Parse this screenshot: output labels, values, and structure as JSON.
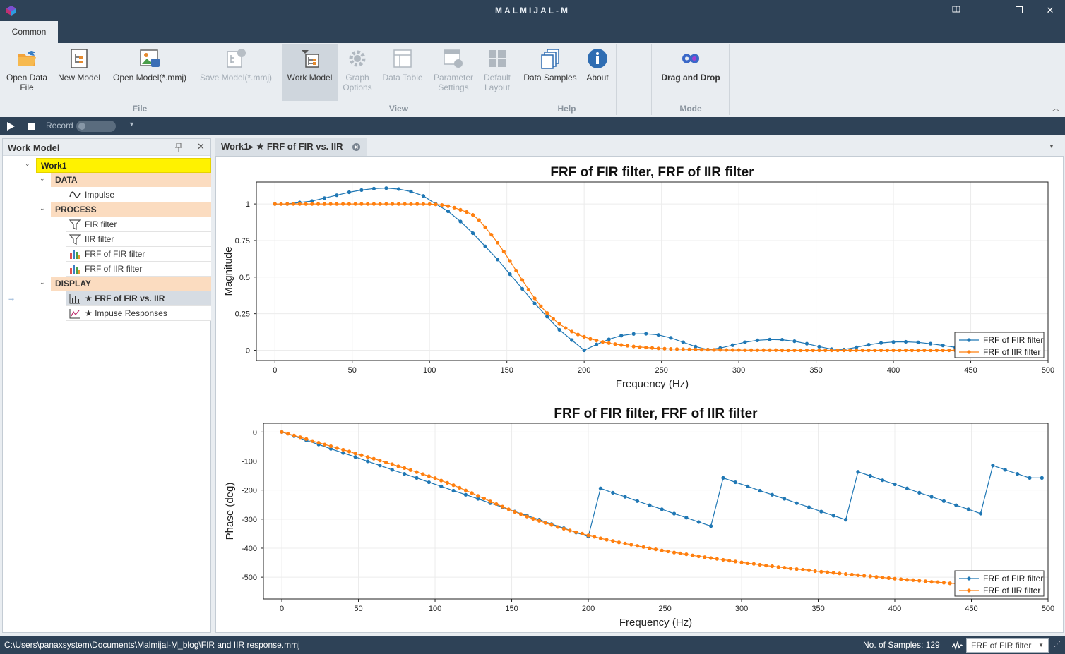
{
  "window": {
    "title": "MALMIJAL-M"
  },
  "tabs": {
    "common": "Common"
  },
  "ribbon": {
    "open_data_file_l1": "Open Data",
    "open_data_file_l2": "File",
    "new_model": "New Model",
    "open_model": "Open Model(*.mmj)",
    "save_model": "Save Model(*.mmj)",
    "work_model": "Work Model",
    "graph_options_l1": "Graph",
    "graph_options_l2": "Options",
    "data_table": "Data Table",
    "parameter_settings_l1": "Parameter",
    "parameter_settings_l2": "Settings",
    "default_layout_l1": "Default",
    "default_layout_l2": "Layout",
    "data_samples": "Data Samples",
    "about": "About",
    "drag_and_drop": "Drag and Drop",
    "groups": {
      "file": "File",
      "view": "View",
      "help": "Help",
      "mode": "Mode"
    }
  },
  "recordbar": {
    "record_label": "Record"
  },
  "work_model_panel": {
    "title": "Work Model",
    "root": "Work1",
    "data": "DATA",
    "impulse": "Impulse",
    "process": "PROCESS",
    "fir_filter": "FIR filter",
    "iir_filter": "IIR filter",
    "frf_fir": "FRF of FIR filter",
    "frf_iir": "FRF of IIR filter",
    "display": "DISPLAY",
    "frf_fir_vs_iir": "★ FRF of FIR vs. IIR",
    "impulse_responses": "★ Impuse Responses"
  },
  "document_tab": {
    "label": "Work1▸ ★ FRF of FIR vs. IIR"
  },
  "statusbar": {
    "path": "C:\\Users\\panaxsystem\\Documents\\Malmijal-M_blog\\FIR and IIR response.mmj",
    "samples": "No. of Samples: 129",
    "selected_series": "FRF of FIR filter"
  },
  "colors": {
    "fir": "#1f77b4",
    "iir": "#ff7f0e",
    "titlebar": "#2e4257"
  },
  "chart_data": [
    {
      "type": "line",
      "title": "FRF of FIR filter, FRF of IIR filter",
      "xlabel": "Frequency (Hz)",
      "ylabel": "Magnitude",
      "xlim": [
        -12,
        500
      ],
      "ylim": [
        -0.07,
        1.15
      ],
      "xticks": [
        0,
        50,
        100,
        150,
        200,
        250,
        300,
        350,
        400,
        450,
        500
      ],
      "yticks": [
        0,
        0.25,
        0.5,
        0.75,
        1
      ],
      "ytick_labels": [
        "0",
        "0.25",
        "0.5",
        "0.75",
        "1"
      ],
      "legend": "bottom-right",
      "series": [
        {
          "name": "FRF of FIR filter",
          "x": [
            0,
            8,
            16,
            24,
            32,
            40,
            48,
            56,
            64,
            72,
            80,
            88,
            96,
            104,
            112,
            120,
            128,
            136,
            144,
            152,
            160,
            168,
            176,
            184,
            192,
            200,
            208,
            216,
            224,
            232,
            240,
            248,
            256,
            264,
            272,
            280,
            288,
            296,
            304,
            312,
            320,
            328,
            336,
            344,
            352,
            360,
            368,
            376,
            384,
            392,
            400,
            408,
            416,
            424,
            432,
            440,
            448
          ],
          "y": [
            1.0,
            1.0,
            1.01,
            1.02,
            1.04,
            1.06,
            1.08,
            1.095,
            1.105,
            1.108,
            1.102,
            1.085,
            1.055,
            1.0,
            0.95,
            0.88,
            0.8,
            0.71,
            0.62,
            0.52,
            0.42,
            0.32,
            0.23,
            0.14,
            0.07,
            0.0,
            0.04,
            0.075,
            0.1,
            0.112,
            0.113,
            0.105,
            0.085,
            0.055,
            0.025,
            0.005,
            0.015,
            0.035,
            0.055,
            0.068,
            0.073,
            0.072,
            0.062,
            0.045,
            0.025,
            0.008,
            0.005,
            0.02,
            0.038,
            0.05,
            0.057,
            0.058,
            0.054,
            0.045,
            0.033,
            0.02,
            0.01
          ]
        },
        {
          "name": "FRF of IIR filter",
          "x": [
            0,
            4,
            8,
            12,
            16,
            20,
            24,
            28,
            32,
            36,
            40,
            44,
            48,
            52,
            56,
            60,
            64,
            68,
            72,
            76,
            80,
            84,
            88,
            92,
            96,
            100,
            104,
            108,
            112,
            116,
            120,
            124,
            128,
            132,
            136,
            140,
            144,
            148,
            152,
            156,
            160,
            164,
            168,
            172,
            176,
            180,
            184,
            188,
            192,
            196,
            200,
            204,
            208,
            212,
            216,
            220,
            224,
            228,
            232,
            236,
            240,
            244,
            248,
            252,
            256,
            260,
            264,
            268,
            272,
            276,
            280,
            284,
            288,
            292,
            296,
            300,
            304,
            308,
            312,
            316,
            320,
            324,
            328,
            332,
            336,
            340,
            344,
            348,
            352,
            356,
            360,
            364,
            368,
            372,
            376,
            380,
            384,
            388,
            392,
            396,
            400,
            404,
            408,
            412,
            416,
            420,
            424,
            428,
            432,
            436,
            440,
            444,
            448
          ],
          "y": [
            1.0,
            1.0,
            1.0,
            1.0,
            1.0,
            1.0,
            1.0,
            1.0,
            1.0,
            1.0,
            1.0,
            1.0,
            1.0,
            1.0,
            1.0,
            1.0,
            1.0,
            1.0,
            1.0,
            1.0,
            1.0,
            1.0,
            1.0,
            1.0,
            1.0,
            0.999,
            0.997,
            0.993,
            0.985,
            0.975,
            0.96,
            0.945,
            0.925,
            0.89,
            0.84,
            0.79,
            0.735,
            0.675,
            0.61,
            0.545,
            0.48,
            0.415,
            0.355,
            0.3,
            0.255,
            0.215,
            0.18,
            0.152,
            0.128,
            0.108,
            0.092,
            0.078,
            0.067,
            0.057,
            0.049,
            0.042,
            0.036,
            0.031,
            0.026,
            0.022,
            0.019,
            0.016,
            0.013,
            0.011,
            0.009,
            0.008,
            0.007,
            0.006,
            0.005,
            0.004,
            0.004,
            0.003,
            0.003,
            0.002,
            0.002,
            0.002,
            0.001,
            0.001,
            0.001,
            0.001,
            0.001,
            0.001,
            0.0,
            0.0,
            0.0,
            0.0,
            0.0,
            0.0,
            0.0,
            0.0,
            0.0,
            0.0,
            0.0,
            0.0,
            0.0,
            0.0,
            0.0,
            0.0,
            0.0,
            0.0,
            0.0,
            0.0,
            0.0,
            0.0,
            0.0,
            0.0,
            0.0,
            0.0,
            0.0,
            0.0,
            0.0,
            0.0,
            0.0
          ]
        }
      ]
    },
    {
      "type": "line",
      "title": "FRF of FIR filter, FRF of IIR filter",
      "xlabel": "Frequency (Hz)",
      "ylabel": "Phase (deg)",
      "xlim": [
        -12,
        500
      ],
      "ylim": [
        -575,
        30
      ],
      "xticks": [
        0,
        50,
        100,
        150,
        200,
        250,
        300,
        350,
        400,
        450,
        500
      ],
      "yticks": [
        0,
        -100,
        -200,
        -300,
        -400,
        -500
      ],
      "ytick_labels": [
        "0",
        "-100",
        "-200",
        "-300",
        "-400",
        "-500"
      ],
      "legend": "bottom-right",
      "series": [
        {
          "name": "FRF of FIR filter",
          "x": [
            0,
            8,
            16,
            24,
            32,
            40,
            48,
            56,
            64,
            72,
            80,
            88,
            96,
            104,
            112,
            120,
            128,
            136,
            144,
            152,
            160,
            168,
            176,
            184,
            192,
            200,
            208,
            216,
            224,
            232,
            240,
            248,
            256,
            264,
            272,
            280,
            288,
            296,
            304,
            312,
            320,
            328,
            336,
            344,
            352,
            360,
            368,
            376,
            384,
            392,
            400,
            408,
            416,
            424,
            432,
            440,
            448,
            456,
            464,
            472,
            480,
            488,
            496
          ],
          "y": [
            0,
            -14,
            -29,
            -43,
            -58,
            -72,
            -86,
            -101,
            -115,
            -130,
            -144,
            -158,
            -173,
            -187,
            -202,
            -216,
            -230,
            -245,
            -259,
            -274,
            -288,
            -302,
            -317,
            -331,
            -346,
            -360,
            -194,
            -209,
            -223,
            -238,
            -252,
            -266,
            -281,
            -295,
            -310,
            -324,
            -158,
            -173,
            -187,
            -202,
            -216,
            -230,
            -245,
            -259,
            -274,
            -288,
            -302,
            -137,
            -151,
            -166,
            -180,
            -194,
            -209,
            -223,
            -238,
            -252,
            -266,
            -281,
            -115,
            -130,
            -144,
            -158,
            -158
          ]
        },
        {
          "name": "FRF of IIR filter",
          "x": [
            0,
            4,
            8,
            12,
            16,
            20,
            24,
            28,
            32,
            36,
            40,
            44,
            48,
            52,
            56,
            60,
            64,
            68,
            72,
            76,
            80,
            84,
            88,
            92,
            96,
            100,
            104,
            108,
            112,
            116,
            120,
            124,
            128,
            132,
            136,
            140,
            144,
            148,
            152,
            156,
            160,
            164,
            168,
            172,
            176,
            180,
            184,
            188,
            192,
            196,
            200,
            204,
            208,
            212,
            216,
            220,
            224,
            228,
            232,
            236,
            240,
            244,
            248,
            252,
            256,
            260,
            264,
            268,
            272,
            276,
            280,
            284,
            288,
            292,
            296,
            300,
            304,
            308,
            312,
            316,
            320,
            324,
            328,
            332,
            336,
            340,
            344,
            348,
            352,
            356,
            360,
            364,
            368,
            372,
            376,
            380,
            384,
            388,
            392,
            396,
            400,
            404,
            408,
            412,
            416,
            420,
            424,
            428,
            432,
            436,
            440,
            444,
            448
          ],
          "y": [
            0,
            -6,
            -12,
            -18,
            -24,
            -31,
            -37,
            -43,
            -49,
            -55,
            -61,
            -67,
            -74,
            -80,
            -86,
            -92,
            -98,
            -105,
            -111,
            -118,
            -124,
            -131,
            -138,
            -145,
            -152,
            -159,
            -167,
            -175,
            -183,
            -192,
            -201,
            -210,
            -220,
            -229,
            -239,
            -248,
            -257,
            -266,
            -275,
            -283,
            -291,
            -299,
            -306,
            -313,
            -320,
            -327,
            -333,
            -339,
            -345,
            -350,
            -356,
            -361,
            -366,
            -371,
            -375,
            -380,
            -384,
            -388,
            -392,
            -396,
            -400,
            -404,
            -408,
            -411,
            -415,
            -418,
            -421,
            -425,
            -428,
            -431,
            -434,
            -437,
            -440,
            -443,
            -446,
            -449,
            -452,
            -454,
            -457,
            -460,
            -462,
            -465,
            -467,
            -470,
            -472,
            -474,
            -476,
            -479,
            -481,
            -483,
            -485,
            -487,
            -489,
            -491,
            -493,
            -495,
            -497,
            -499,
            -501,
            -503,
            -505,
            -507,
            -509,
            -510,
            -512,
            -514,
            -516,
            -517,
            -519,
            -521,
            -522,
            -524,
            -526
          ]
        }
      ]
    }
  ]
}
